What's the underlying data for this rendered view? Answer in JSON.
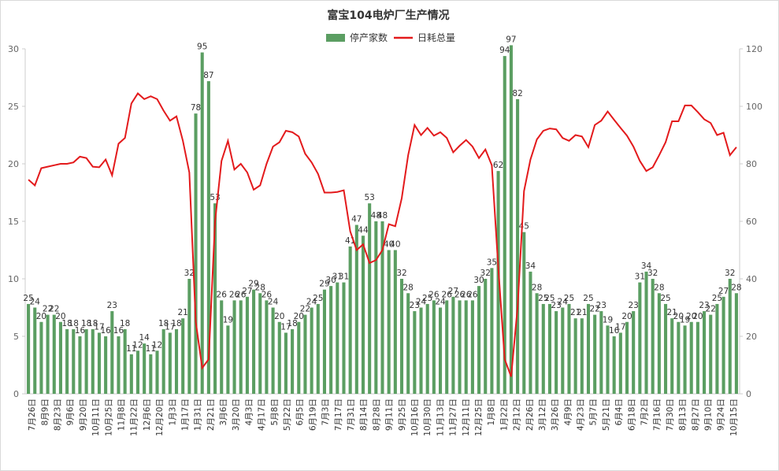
{
  "chart_data": {
    "type": "bar",
    "title": "富宝104电炉厂生产情况",
    "series": [
      {
        "name": "停产家数",
        "type": "bar",
        "axis": "left",
        "color": "#5b9e62"
      },
      {
        "name": "日耗总量",
        "type": "line",
        "axis": "right",
        "color": "#e31a1c"
      }
    ],
    "legend_position": "top-center",
    "y_left": {
      "min": 0,
      "max": 30,
      "ticks": [
        0,
        5,
        10,
        15,
        20,
        25,
        30
      ]
    },
    "y_right": {
      "min": 0,
      "max": 120,
      "ticks": [
        0,
        20,
        40,
        60,
        80,
        100,
        120
      ]
    },
    "grid": false,
    "x_tick_labels": [
      "7月26日",
      "8月9日",
      "8月23日",
      "9月6日",
      "9月20日",
      "10月11日",
      "10月25日",
      "11月8日",
      "11月22日",
      "12月6日",
      "12月20日",
      "1月3日",
      "1月17日",
      "1月31日",
      "2月21日",
      "3月6日",
      "3月20日",
      "4月3日",
      "4月17日",
      "5月8日",
      "5月22日",
      "6月5日",
      "6月19日",
      "7月3日",
      "7月17日",
      "7月31日",
      "8月14日",
      "8月28日",
      "9月11日",
      "9月25日",
      "10月16日",
      "10月30日",
      "11月13日",
      "11月27日",
      "12月11日",
      "12月25日",
      "1月8日",
      "1月22日",
      "2月12日",
      "2月26日",
      "3月12日",
      "3月26日",
      "4月9日",
      "4月23日",
      "5月7日",
      "5月21日",
      "6月4日",
      "6月18日",
      "7月2日",
      "7月16日",
      "7月30日",
      "8月13日",
      "8月27日",
      "9月10日",
      "9月24日",
      "10月15日"
    ],
    "bar_values": [
      25,
      24,
      20,
      22,
      22,
      20,
      18,
      18,
      16,
      18,
      18,
      17,
      16,
      23,
      16,
      18,
      11,
      12,
      14,
      11,
      12,
      18,
      17,
      18,
      21,
      32,
      78,
      95,
      87,
      53,
      26,
      19,
      26,
      26,
      27,
      29,
      28,
      26,
      24,
      20,
      17,
      18,
      20,
      22,
      24,
      25,
      29,
      30,
      31,
      31,
      41,
      47,
      44,
      53,
      48,
      48,
      40,
      40,
      32,
      28,
      23,
      24,
      25,
      26,
      24,
      26,
      27,
      26,
      26,
      26,
      30,
      32,
      35,
      62,
      94,
      97,
      82,
      45,
      34,
      28,
      25,
      25,
      23,
      24,
      25,
      21,
      21,
      25,
      22,
      23,
      19,
      16,
      17,
      20,
      23,
      31,
      34,
      32,
      28,
      25,
      21,
      20,
      19,
      20,
      20,
      23,
      22,
      25,
      27,
      32,
      28
    ],
    "data_labels": [
      25,
      24,
      20,
      22,
      22,
      20,
      18,
      18,
      16,
      18,
      18,
      17,
      16,
      23,
      16,
      18,
      11,
      12,
      14,
      11,
      12,
      18,
      17,
      18,
      21,
      32,
      78,
      95,
      87,
      53,
      26,
      19,
      26,
      26,
      27,
      29,
      28,
      26,
      24,
      20,
      17,
      18,
      20,
      22,
      24,
      25,
      29,
      30,
      31,
      31,
      41,
      47,
      44,
      53,
      48,
      48,
      40,
      40,
      32,
      28,
      23,
      24,
      25,
      26,
      24,
      26,
      27,
      26,
      26,
      26,
      30,
      32,
      35,
      62,
      94,
      97,
      82,
      45,
      34,
      28,
      25,
      25,
      23,
      24,
      25,
      21,
      21,
      25,
      22,
      23,
      19,
      16,
      17,
      20,
      23,
      31,
      34,
      32,
      28,
      25,
      21,
      20,
      19,
      20,
      20,
      23,
      22,
      25,
      27,
      32,
      28
    ],
    "line_values": [
      74.5,
      72.5,
      78.5,
      79,
      79.5,
      80,
      80,
      80.5,
      82.5,
      82,
      79,
      78.8,
      81.5,
      76,
      87,
      89,
      101,
      104.5,
      102.5,
      103.5,
      102.5,
      98.5,
      95,
      96.5,
      88,
      77,
      25,
      9,
      12,
      60,
      81,
      88,
      78,
      80,
      77,
      71,
      72.5,
      80,
      86,
      87.5,
      91.5,
      91,
      89.5,
      83.5,
      80.5,
      76.5,
      70,
      70,
      70.2,
      70.8,
      56.5,
      50,
      52,
      45.5,
      46.5,
      50,
      59,
      58.3,
      68,
      83,
      93.5,
      90,
      92.5,
      89.8,
      91,
      89,
      84,
      86.3,
      88.3,
      86,
      82,
      85,
      79.5,
      44,
      12,
      6,
      30,
      70.5,
      81.5,
      88.5,
      91.5,
      92.3,
      92,
      89,
      88,
      90,
      89.5,
      85.8,
      93.5,
      95,
      98.2,
      95.3,
      92.5,
      89.8,
      86,
      81,
      77.5,
      78.8,
      83,
      87.5,
      94.8,
      94.8,
      100.3,
      100.3,
      98,
      95.5,
      94.2,
      90,
      90.8,
      83,
      85.8
    ]
  }
}
